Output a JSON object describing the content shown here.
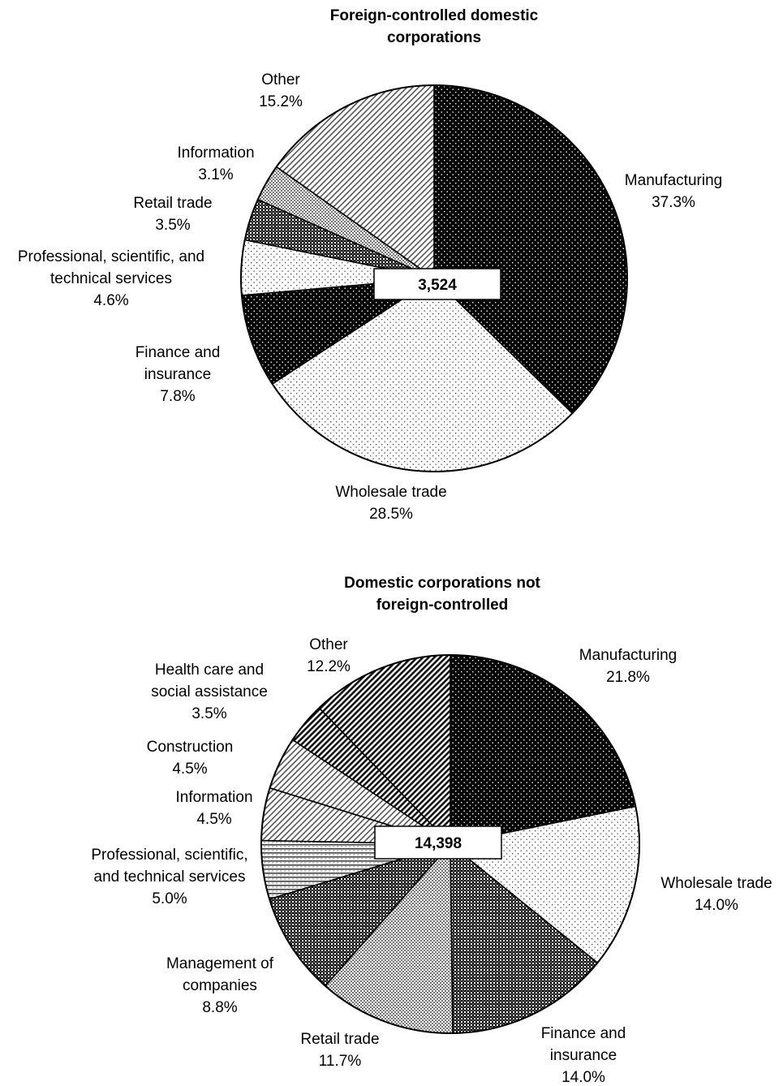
{
  "chart_data": [
    {
      "type": "pie",
      "title_lines": [
        "Foreign-controlled domestic",
        "corporations"
      ],
      "total": "3,524",
      "slices": [
        {
          "name": "Manufacturing",
          "label_lines": [
            "Manufacturing"
          ],
          "pct_label": "37.3%",
          "value": 37.3,
          "fill": "dots-black"
        },
        {
          "name": "Wholesale trade",
          "label_lines": [
            "Wholesale trade"
          ],
          "pct_label": "28.5%",
          "value": 28.5,
          "fill": "dots-light"
        },
        {
          "name": "Finance and insurance",
          "label_lines": [
            "Finance and",
            "insurance"
          ],
          "pct_label": "7.8%",
          "value": 7.8,
          "fill": "dots-black"
        },
        {
          "name": "Professional, scientific, and technical services",
          "label_lines": [
            "Professional, scientific, and",
            "technical services"
          ],
          "pct_label": "4.6%",
          "value": 4.6,
          "fill": "dots-light"
        },
        {
          "name": "Retail trade",
          "label_lines": [
            "Retail trade"
          ],
          "pct_label": "3.5%",
          "value": 3.5,
          "fill": "check-dark"
        },
        {
          "name": "Information",
          "label_lines": [
            "Information"
          ],
          "pct_label": "3.1%",
          "value": 3.1,
          "fill": "check-light"
        },
        {
          "name": "Other",
          "label_lines": [
            "Other"
          ],
          "pct_label": "15.2%",
          "value": 15.2,
          "fill": "diag-light"
        }
      ]
    },
    {
      "type": "pie",
      "title_lines": [
        "Domestic corporations not",
        "foreign-controlled"
      ],
      "total": "14,398",
      "slices": [
        {
          "name": "Manufacturing",
          "label_lines": [
            "Manufacturing"
          ],
          "pct_label": "21.8%",
          "value": 21.8,
          "fill": "dots-black"
        },
        {
          "name": "Wholesale trade",
          "label_lines": [
            "Wholesale trade"
          ],
          "pct_label": "14.0%",
          "value": 14.0,
          "fill": "dots-light"
        },
        {
          "name": "Finance and insurance",
          "label_lines": [
            "Finance and",
            "insurance"
          ],
          "pct_label": "14.0%",
          "value": 14.0,
          "fill": "check-dark"
        },
        {
          "name": "Retail trade",
          "label_lines": [
            "Retail trade"
          ],
          "pct_label": "11.7%",
          "value": 11.7,
          "fill": "check-light"
        },
        {
          "name": "Management of companies",
          "label_lines": [
            "Management of",
            "companies"
          ],
          "pct_label": "8.8%",
          "value": 8.8,
          "fill": "check-dark"
        },
        {
          "name": "Professional, scientific, and technical services",
          "label_lines": [
            "Professional, scientific,",
            "and technical services"
          ],
          "pct_label": "5.0%",
          "value": 5.0,
          "fill": "hlines"
        },
        {
          "name": "Information",
          "label_lines": [
            "Information"
          ],
          "pct_label": "4.5%",
          "value": 4.5,
          "fill": "diag-light"
        },
        {
          "name": "Construction",
          "label_lines": [
            "Construction"
          ],
          "pct_label": "4.5%",
          "value": 4.5,
          "fill": "diag-light"
        },
        {
          "name": "Health care and social assistance",
          "label_lines": [
            "Health care and",
            "social assistance"
          ],
          "pct_label": "3.5%",
          "value": 3.5,
          "fill": "diag-dark"
        },
        {
          "name": "Other",
          "label_lines": [
            "Other"
          ],
          "pct_label": "12.2%",
          "value": 12.2,
          "fill": "diag-dark"
        }
      ]
    }
  ]
}
